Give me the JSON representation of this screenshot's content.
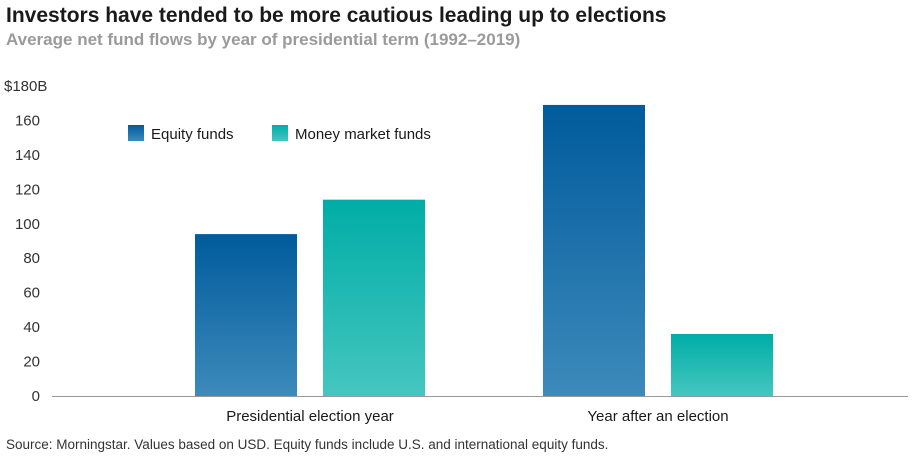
{
  "title": "Investors have tended to be more cautious leading up to elections",
  "subtitle": "Average net fund flows by year of presidential term (1992–2019)",
  "source": "Source: Morningstar. Values based on USD. Equity funds include U.S. and international equity funds.",
  "chart_data": {
    "type": "bar",
    "title": "Investors have tended to be more cautious leading up to elections",
    "subtitle": "Average net fund flows by year of presidential term (1992–2019)",
    "categories": [
      "Presidential election year",
      "Year after an election"
    ],
    "series": [
      {
        "name": "Equity funds",
        "values": [
          94,
          169
        ],
        "color": "#1a6aa6"
      },
      {
        "name": "Money market funds",
        "values": [
          114,
          36
        ],
        "color": "#1ab5ad"
      }
    ],
    "y_ticks": [
      0,
      20,
      40,
      60,
      80,
      100,
      120,
      140,
      160,
      180
    ],
    "y_tick_labels": [
      "0",
      "20",
      "40",
      "60",
      "80",
      "100",
      "120",
      "140",
      "160",
      "$180B"
    ],
    "ylim": [
      0,
      180
    ],
    "xlabel": "",
    "ylabel": "",
    "grid": false,
    "legend_position": "top-left"
  }
}
